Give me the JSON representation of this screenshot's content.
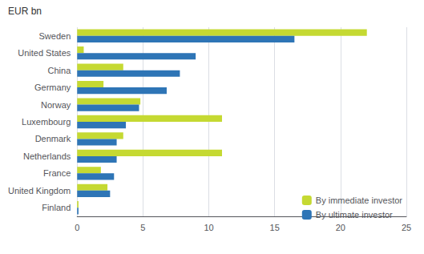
{
  "chart_data": {
    "type": "bar",
    "orientation": "horizontal",
    "categories": [
      "Sweden",
      "United States",
      "China",
      "Germany",
      "Norway",
      "Luxembourg",
      "Denmark",
      "Netherlands",
      "France",
      "United Kingdom",
      "Finland"
    ],
    "series": [
      {
        "name": "By immediate investor",
        "color": "#c5d932",
        "values": [
          22.0,
          0.5,
          3.5,
          2.0,
          4.8,
          11.0,
          3.5,
          11.0,
          1.8,
          2.3,
          0.1
        ]
      },
      {
        "name": "By ultimate investor",
        "color": "#2e75b6",
        "values": [
          16.5,
          9.0,
          7.8,
          6.8,
          4.7,
          3.7,
          3.0,
          3.0,
          2.8,
          2.5,
          0.1
        ]
      }
    ],
    "ylabel": "EUR bn",
    "xlim": [
      0,
      25
    ],
    "xticks": [
      0,
      5,
      10,
      15,
      20,
      25
    ],
    "grid": true,
    "legend": "lower right"
  }
}
